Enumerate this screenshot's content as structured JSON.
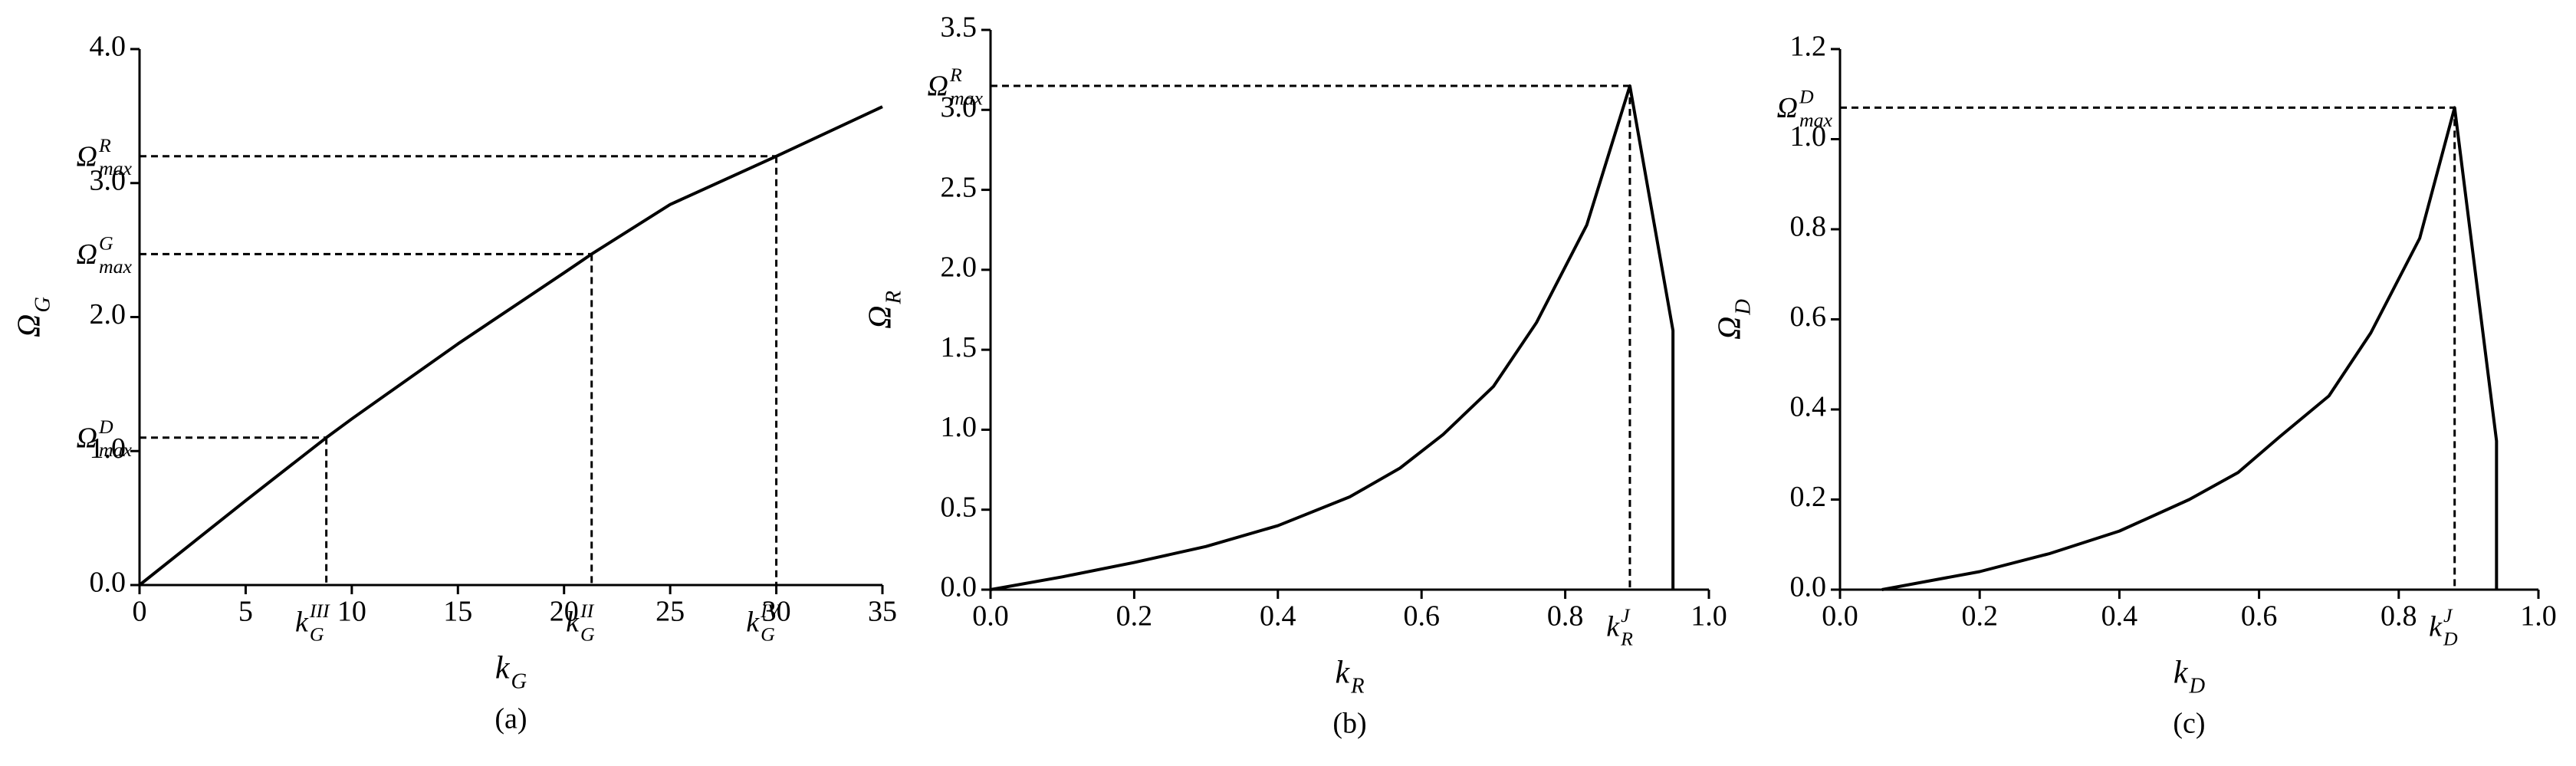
{
  "chart_data": [
    {
      "type": "line",
      "caption": "(a)",
      "color": "#000000",
      "xlabel": {
        "base": "k",
        "sub": "G"
      },
      "ylabel": {
        "base": "Ω",
        "sub": "G"
      },
      "x": [
        0,
        5,
        8.8,
        10,
        15,
        20,
        21.3,
        25,
        30,
        35
      ],
      "values": [
        0,
        0.63,
        1.1,
        1.24,
        1.8,
        2.33,
        2.47,
        2.84,
        3.2,
        3.57
      ],
      "xlim": [
        0,
        35
      ],
      "xticks": [
        0,
        5,
        10,
        15,
        20,
        25,
        30,
        35
      ],
      "ylim": [
        0,
        4
      ],
      "yticks": [
        {
          "value": 0,
          "label": "0.0"
        },
        {
          "value": 1,
          "label": "1.0"
        },
        {
          "value": 2,
          "label": "2.0"
        },
        {
          "value": 3,
          "label": "3.0"
        },
        {
          "value": 4,
          "label": "4.0"
        }
      ],
      "references": [
        {
          "x": 30,
          "y": 3.2,
          "y_label": {
            "base": "Ω",
            "sup": "R",
            "sub": "max"
          },
          "x_label": {
            "base": "k",
            "sup": "IV",
            "sub": "G"
          }
        },
        {
          "x": 21.3,
          "y": 2.47,
          "y_label": {
            "base": "Ω",
            "sup": "G",
            "sub": "max"
          },
          "x_label": {
            "base": "k",
            "sup": "II",
            "sub": "G"
          }
        },
        {
          "x": 8.8,
          "y": 1.1,
          "y_label": {
            "base": "Ω",
            "sup": "D",
            "sub": "max"
          },
          "x_label": {
            "base": "k",
            "sup": "III",
            "sub": "G"
          }
        }
      ]
    },
    {
      "type": "line",
      "caption": "(b)",
      "color": "#000000",
      "xlabel": {
        "base": "k",
        "sub": "R"
      },
      "ylabel": {
        "base": "Ω",
        "sub": "R"
      },
      "x": [
        0,
        0.1,
        0.2,
        0.3,
        0.4,
        0.5,
        0.57,
        0.63,
        0.7,
        0.76,
        0.83,
        0.89,
        0.95,
        0.95
      ],
      "values": [
        0,
        0.08,
        0.17,
        0.27,
        0.4,
        0.58,
        0.76,
        0.97,
        1.27,
        1.67,
        2.28,
        3.15,
        1.62,
        0
      ],
      "xlim": [
        0,
        1
      ],
      "xticks": [
        {
          "value": 0,
          "label": "0.0"
        },
        0.2,
        0.4,
        0.6,
        0.8,
        {
          "value": 1,
          "label": "1.0"
        }
      ],
      "ylim": [
        0,
        3.5
      ],
      "yticks": [
        {
          "value": 0,
          "label": "0.0"
        },
        0.5,
        {
          "value": 1,
          "label": "1.0"
        },
        1.5,
        {
          "value": 2,
          "label": "2.0"
        },
        2.5,
        {
          "value": 3,
          "label": "3.0"
        },
        3.5
      ],
      "references": [
        {
          "x": 0.89,
          "y": 3.15,
          "y_label": {
            "base": "Ω",
            "sup": "R",
            "sub": "max"
          },
          "x_label": {
            "base": "k",
            "sup": "J",
            "sub": "R"
          }
        }
      ]
    },
    {
      "type": "line",
      "caption": "(c)",
      "color": "#000000",
      "xlabel": {
        "base": "k",
        "sub": "D"
      },
      "ylabel": {
        "base": "Ω",
        "sub": "D"
      },
      "x": [
        0.06,
        0.2,
        0.3,
        0.4,
        0.5,
        0.57,
        0.63,
        0.7,
        0.76,
        0.83,
        0.88,
        0.94,
        0.94
      ],
      "values": [
        0,
        0.04,
        0.08,
        0.13,
        0.2,
        0.26,
        0.34,
        0.43,
        0.57,
        0.78,
        1.07,
        0.33,
        0
      ],
      "xlim": [
        0,
        1
      ],
      "xticks": [
        {
          "value": 0,
          "label": "0.0"
        },
        0.2,
        0.4,
        0.6,
        0.8,
        {
          "value": 1,
          "label": "1.0"
        }
      ],
      "ylim": [
        0,
        1.2
      ],
      "yticks": [
        {
          "value": 0,
          "label": "0.0"
        },
        0.2,
        0.4,
        0.6,
        0.8,
        {
          "value": 1,
          "label": "1.0"
        },
        1.2
      ],
      "references": [
        {
          "x": 0.88,
          "y": 1.07,
          "y_label": {
            "base": "Ω",
            "sup": "D",
            "sub": "max"
          },
          "x_label": {
            "base": "k",
            "sup": "J",
            "sub": "D"
          }
        }
      ]
    }
  ]
}
